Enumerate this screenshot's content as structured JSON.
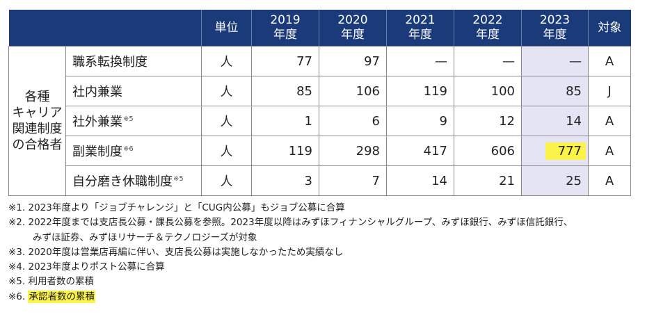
{
  "header": {
    "unit": "単位",
    "years": [
      {
        "year": "2019",
        "suffix": "年度"
      },
      {
        "year": "2020",
        "suffix": "年度"
      },
      {
        "year": "2021",
        "suffix": "年度"
      },
      {
        "year": "2022",
        "suffix": "年度"
      },
      {
        "year": "2023",
        "suffix": "年度"
      }
    ],
    "target": "対象"
  },
  "category_lines": [
    "各種",
    "キャリア",
    "関連制度",
    "の合格者"
  ],
  "rows": [
    {
      "item": "職系転換制度",
      "note": "",
      "unit": "人",
      "values": [
        "77",
        "97",
        "—",
        "—",
        "—"
      ],
      "target": "A"
    },
    {
      "item": "社内兼業",
      "note": "",
      "unit": "人",
      "values": [
        "85",
        "106",
        "119",
        "100",
        "85"
      ],
      "target": "J"
    },
    {
      "item": "社外兼業",
      "note": "※5",
      "unit": "人",
      "values": [
        "1",
        "6",
        "9",
        "12",
        "14"
      ],
      "target": "A"
    },
    {
      "item": "副業制度",
      "note": "※6",
      "unit": "人",
      "values": [
        "119",
        "298",
        "417",
        "606",
        "777"
      ],
      "target": "A"
    },
    {
      "item": "自分磨き休職制度",
      "note": "※5",
      "unit": "人",
      "values": [
        "3",
        "7",
        "14",
        "21",
        "25"
      ],
      "target": "A"
    }
  ],
  "highlight_color": "#fbf24a",
  "header_color": "#1b3a7a",
  "year2023_column_color": "#e4e4f5",
  "notes": {
    "n1": "※1. 2023年度より「ジョブチャレンジ」と「CUG内公募」もジョブ公募に合算",
    "n2_line1": "※2. 2022年度までは支店長公募・課長公募を参照。2023年度以降はみずほフィナンシャルグループ、みずほ銀行、みずほ信託銀行、",
    "n2_line2": "みずほ証券、みずほリサーチ＆テクノロジーズが対象",
    "n3": "※3. 2020年度は営業店再編に伴い、支店長公募は実施しなかったため実績なし",
    "n4": "※4. 2023年度よりポスト公募に合算",
    "n5": "※5. 利用者数の累積",
    "n6_prefix": "※6. ",
    "n6_text": "承認者数の累積"
  }
}
